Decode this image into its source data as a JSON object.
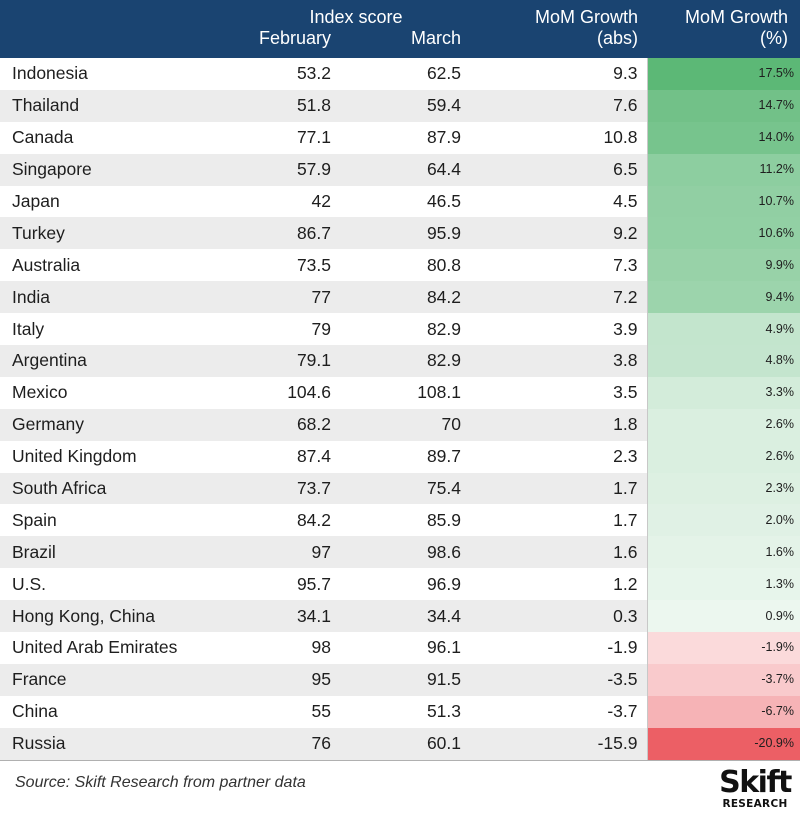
{
  "chart_data": {
    "type": "table",
    "header": {
      "group_label": "Index score",
      "feb_label": "February",
      "mar_label": "March",
      "mom_abs_line1": "MoM Growth",
      "mom_abs_line2": "(abs)",
      "mom_pct_line1": "MoM Growth",
      "mom_pct_line2": "(%)"
    },
    "rows": [
      {
        "country": "Indonesia",
        "feb": "53.2",
        "mar": "62.5",
        "mom_abs": "9.3",
        "mom_pct": "17.5%",
        "pct_value": 17.5
      },
      {
        "country": "Thailand",
        "feb": "51.8",
        "mar": "59.4",
        "mom_abs": "7.6",
        "mom_pct": "14.7%",
        "pct_value": 14.7
      },
      {
        "country": "Canada",
        "feb": "77.1",
        "mar": "87.9",
        "mom_abs": "10.8",
        "mom_pct": "14.0%",
        "pct_value": 14.0
      },
      {
        "country": "Singapore",
        "feb": "57.9",
        "mar": "64.4",
        "mom_abs": "6.5",
        "mom_pct": "11.2%",
        "pct_value": 11.2
      },
      {
        "country": "Japan",
        "feb": "42",
        "mar": "46.5",
        "mom_abs": "4.5",
        "mom_pct": "10.7%",
        "pct_value": 10.7
      },
      {
        "country": "Turkey",
        "feb": "86.7",
        "mar": "95.9",
        "mom_abs": "9.2",
        "mom_pct": "10.6%",
        "pct_value": 10.6
      },
      {
        "country": "Australia",
        "feb": "73.5",
        "mar": "80.8",
        "mom_abs": "7.3",
        "mom_pct": "9.9%",
        "pct_value": 9.9
      },
      {
        "country": "India",
        "feb": "77",
        "mar": "84.2",
        "mom_abs": "7.2",
        "mom_pct": "9.4%",
        "pct_value": 9.4
      },
      {
        "country": "Italy",
        "feb": "79",
        "mar": "82.9",
        "mom_abs": "3.9",
        "mom_pct": "4.9%",
        "pct_value": 4.9
      },
      {
        "country": "Argentina",
        "feb": "79.1",
        "mar": "82.9",
        "mom_abs": "3.8",
        "mom_pct": "4.8%",
        "pct_value": 4.8
      },
      {
        "country": "Mexico",
        "feb": "104.6",
        "mar": "108.1",
        "mom_abs": "3.5",
        "mom_pct": "3.3%",
        "pct_value": 3.3
      },
      {
        "country": "Germany",
        "feb": "68.2",
        "mar": "70",
        "mom_abs": "1.8",
        "mom_pct": "2.6%",
        "pct_value": 2.6
      },
      {
        "country": "United Kingdom",
        "feb": "87.4",
        "mar": "89.7",
        "mom_abs": "2.3",
        "mom_pct": "2.6%",
        "pct_value": 2.6
      },
      {
        "country": "South Africa",
        "feb": "73.7",
        "mar": "75.4",
        "mom_abs": "1.7",
        "mom_pct": "2.3%",
        "pct_value": 2.3
      },
      {
        "country": "Spain",
        "feb": "84.2",
        "mar": "85.9",
        "mom_abs": "1.7",
        "mom_pct": "2.0%",
        "pct_value": 2.0
      },
      {
        "country": "Brazil",
        "feb": "97",
        "mar": "98.6",
        "mom_abs": "1.6",
        "mom_pct": "1.6%",
        "pct_value": 1.6
      },
      {
        "country": "U.S.",
        "feb": "95.7",
        "mar": "96.9",
        "mom_abs": "1.2",
        "mom_pct": "1.3%",
        "pct_value": 1.3
      },
      {
        "country": "Hong Kong, China",
        "feb": "34.1",
        "mar": "34.4",
        "mom_abs": "0.3",
        "mom_pct": "0.9%",
        "pct_value": 0.9
      },
      {
        "country": "United Arab Emirates",
        "feb": "98",
        "mar": "96.1",
        "mom_abs": "-1.9",
        "mom_pct": "-1.9%",
        "pct_value": -1.9
      },
      {
        "country": "France",
        "feb": "95",
        "mar": "91.5",
        "mom_abs": "-3.5",
        "mom_pct": "-3.7%",
        "pct_value": -3.7
      },
      {
        "country": "China",
        "feb": "55",
        "mar": "51.3",
        "mom_abs": "-3.7",
        "mom_pct": "-6.7%",
        "pct_value": -6.7
      },
      {
        "country": "Russia",
        "feb": "76",
        "mar": "60.1",
        "mom_abs": "-15.9",
        "mom_pct": "-20.9%",
        "pct_value": -20.9
      }
    ]
  },
  "colors": {
    "header_bg": "#1a4471",
    "positive": "#5cb876",
    "negative": "#ec5f65",
    "stripe": "#ececec"
  },
  "footer": {
    "source": "Source: Skift Research from partner data"
  },
  "logo": {
    "word": "Skift",
    "sub": "RESEARCH"
  }
}
